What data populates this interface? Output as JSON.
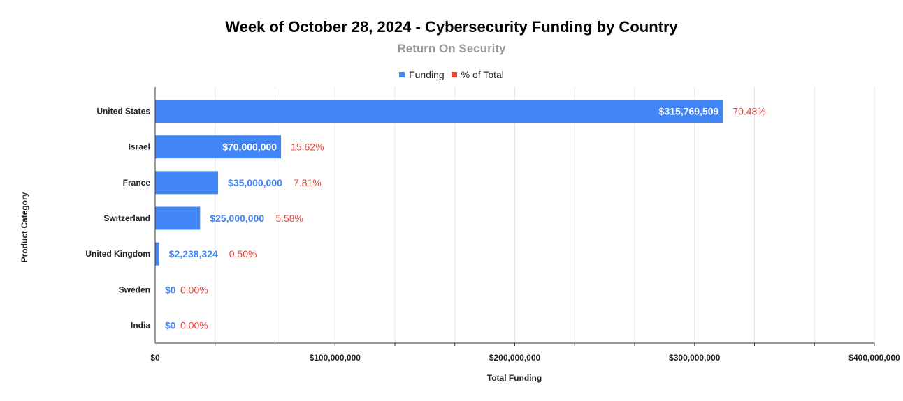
{
  "colors": {
    "funding": "#4285f4",
    "percent": "#ea4335",
    "grid": "#e6e6e6",
    "axis": "#333333"
  },
  "chart_data": {
    "type": "bar",
    "orientation": "horizontal",
    "title": "Week of October 28, 2024 - Cybersecurity Funding by Country",
    "subtitle": "Return On Security",
    "xlabel": "Total Funding",
    "ylabel": "Product Category",
    "xlim": [
      0,
      400000000
    ],
    "x_ticks": [
      0,
      100000000,
      200000000,
      300000000,
      400000000
    ],
    "x_tick_labels": [
      "$0",
      "$100,000,000",
      "$200,000,000",
      "$300,000,000",
      "$400,000,000"
    ],
    "legend_position": "top",
    "legend": [
      "Funding",
      "% of Total"
    ],
    "categories": [
      "United States",
      "Israel",
      "France",
      "Switzerland",
      "United Kingdom",
      "Sweden",
      "India"
    ],
    "series": [
      {
        "name": "Funding",
        "values": [
          315769509,
          70000000,
          35000000,
          25000000,
          2238324,
          0,
          0
        ],
        "labels": [
          "$315,769,509",
          "$70,000,000",
          "$35,000,000",
          "$25,000,000",
          "$2,238,324",
          "$0",
          "$0"
        ]
      },
      {
        "name": "% of Total",
        "values": [
          70.48,
          15.62,
          7.81,
          5.58,
          0.5,
          0.0,
          0.0
        ],
        "labels": [
          "70.48%",
          "15.62%",
          "7.81%",
          "5.58%",
          "0.50%",
          "0.00%",
          "0.00%"
        ]
      }
    ]
  }
}
